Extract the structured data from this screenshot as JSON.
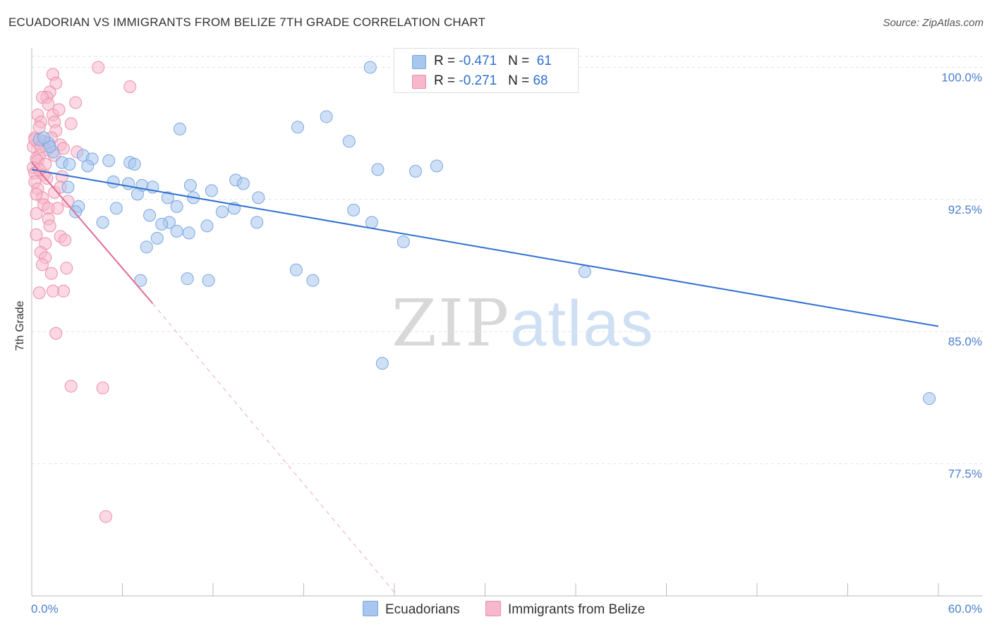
{
  "title": "ECUADORIAN VS IMMIGRANTS FROM BELIZE 7TH GRADE CORRELATION CHART",
  "source": "Source: ZipAtlas.com",
  "watermark": {
    "zip": "ZIP",
    "atlas": "atlas"
  },
  "legend": {
    "rows": [
      {
        "r_label": "R = ",
        "r_value": "-0.471",
        "n_label": "N = ",
        "n_value": "61",
        "color": "#a7c7ef"
      },
      {
        "r_label": "R = ",
        "r_value": "-0.271",
        "n_label": "N = ",
        "n_value": "68",
        "color": "#f7b8cc"
      }
    ]
  },
  "bottom_legend": [
    {
      "label": "Ecuadorians",
      "color": "#a7c7ef"
    },
    {
      "label": "Immigrants from Belize",
      "color": "#f7b8cc"
    }
  ],
  "chart_data": {
    "type": "scatter",
    "xlabel": "",
    "ylabel": "7th Grade",
    "xlim": [
      0,
      60
    ],
    "ylim": [
      70.0,
      100.7
    ],
    "x_tick_labels": [
      {
        "value": 0,
        "label": "0.0%"
      },
      {
        "value": 60,
        "label": "60.0%"
      }
    ],
    "y_tick_labels": [
      {
        "value": 100.0,
        "label": "100.0%"
      },
      {
        "value": 92.5,
        "label": "92.5%"
      },
      {
        "value": 85.0,
        "label": "85.0%"
      },
      {
        "value": 77.5,
        "label": "77.5%"
      }
    ],
    "grid": true,
    "series": [
      {
        "name": "Ecuadorians",
        "color": "#a7c7ef",
        "stroke": "#7aa6e0",
        "trend_color": "#2f6fd0",
        "trend": {
          "x0": 0.0,
          "y0": 94.2,
          "x1": 60.0,
          "y1": 85.3
        },
        "points": [
          [
            22.4,
            100.0
          ],
          [
            17.6,
            96.6
          ],
          [
            19.5,
            97.2
          ],
          [
            9.8,
            96.5
          ],
          [
            21.0,
            95.8
          ],
          [
            1.1,
            95.7
          ],
          [
            1.4,
            95.2
          ],
          [
            2.0,
            94.6
          ],
          [
            2.5,
            94.5
          ],
          [
            3.4,
            95.0
          ],
          [
            4.0,
            94.8
          ],
          [
            5.1,
            94.7
          ],
          [
            6.5,
            94.6
          ],
          [
            3.7,
            94.4
          ],
          [
            22.9,
            94.2
          ],
          [
            25.4,
            94.1
          ],
          [
            26.8,
            94.4
          ],
          [
            5.4,
            93.5
          ],
          [
            6.4,
            93.4
          ],
          [
            7.3,
            93.3
          ],
          [
            8.0,
            93.2
          ],
          [
            10.5,
            93.3
          ],
          [
            13.5,
            93.6
          ],
          [
            14.0,
            93.4
          ],
          [
            2.4,
            93.2
          ],
          [
            7.0,
            92.8
          ],
          [
            9.0,
            92.6
          ],
          [
            10.7,
            92.6
          ],
          [
            11.9,
            93.0
          ],
          [
            15.0,
            92.6
          ],
          [
            3.1,
            92.1
          ],
          [
            5.6,
            92.0
          ],
          [
            9.6,
            92.1
          ],
          [
            12.6,
            91.8
          ],
          [
            13.4,
            92.0
          ],
          [
            21.3,
            91.9
          ],
          [
            2.9,
            91.8
          ],
          [
            7.8,
            91.6
          ],
          [
            9.1,
            91.2
          ],
          [
            4.7,
            91.2
          ],
          [
            8.6,
            91.1
          ],
          [
            11.6,
            91.0
          ],
          [
            14.9,
            91.2
          ],
          [
            22.5,
            91.2
          ],
          [
            8.3,
            90.3
          ],
          [
            9.6,
            90.7
          ],
          [
            10.4,
            90.6
          ],
          [
            24.6,
            90.1
          ],
          [
            7.6,
            89.8
          ],
          [
            17.5,
            88.5
          ],
          [
            36.6,
            88.4
          ],
          [
            7.2,
            87.9
          ],
          [
            10.3,
            88.0
          ],
          [
            11.7,
            87.9
          ],
          [
            18.6,
            87.9
          ],
          [
            23.2,
            83.2
          ],
          [
            59.4,
            81.2
          ],
          [
            0.5,
            95.9
          ],
          [
            1.2,
            95.5
          ],
          [
            0.8,
            96.0
          ],
          [
            6.8,
            94.5
          ]
        ]
      },
      {
        "name": "Immigrants from Belize",
        "color": "#f7b8cc",
        "stroke": "#eb8fab",
        "trend_color": "#e26a94",
        "trend": {
          "x0": 0.0,
          "y0": 94.6,
          "x1": 8.0,
          "y1": 86.6
        },
        "trend_dashed": {
          "x0": 8.0,
          "y0": 86.6,
          "x1": 24.0,
          "y1": 70.2
        },
        "points": [
          [
            4.4,
            100.0
          ],
          [
            1.4,
            99.6
          ],
          [
            1.6,
            99.1
          ],
          [
            6.5,
            98.9
          ],
          [
            1.2,
            98.6
          ],
          [
            1.0,
            98.3
          ],
          [
            0.7,
            98.3
          ],
          [
            2.9,
            98.0
          ],
          [
            1.1,
            97.9
          ],
          [
            0.4,
            97.3
          ],
          [
            1.4,
            97.3
          ],
          [
            1.5,
            96.9
          ],
          [
            0.6,
            96.9
          ],
          [
            0.5,
            96.6
          ],
          [
            1.6,
            96.4
          ],
          [
            0.2,
            96.0
          ],
          [
            0.8,
            95.8
          ],
          [
            0.4,
            95.7
          ],
          [
            1.9,
            95.6
          ],
          [
            0.1,
            95.5
          ],
          [
            1.0,
            95.3
          ],
          [
            3.0,
            95.2
          ],
          [
            0.5,
            95.0
          ],
          [
            0.3,
            94.8
          ],
          [
            0.4,
            94.7
          ],
          [
            0.1,
            94.3
          ],
          [
            0.2,
            94.0
          ],
          [
            0.8,
            93.9
          ],
          [
            2.0,
            93.8
          ],
          [
            0.2,
            93.5
          ],
          [
            0.4,
            93.1
          ],
          [
            1.5,
            92.9
          ],
          [
            0.7,
            92.6
          ],
          [
            0.8,
            92.2
          ],
          [
            1.1,
            92.0
          ],
          [
            1.7,
            92.0
          ],
          [
            0.3,
            91.7
          ],
          [
            1.1,
            91.4
          ],
          [
            0.3,
            90.5
          ],
          [
            1.9,
            90.4
          ],
          [
            2.2,
            90.2
          ],
          [
            0.9,
            90.0
          ],
          [
            0.6,
            89.5
          ],
          [
            0.9,
            89.2
          ],
          [
            2.3,
            88.6
          ],
          [
            1.3,
            88.3
          ],
          [
            2.1,
            87.3
          ],
          [
            1.4,
            87.3
          ],
          [
            0.5,
            87.2
          ],
          [
            1.6,
            84.9
          ],
          [
            2.6,
            81.9
          ],
          [
            4.7,
            81.8
          ],
          [
            4.9,
            74.5
          ],
          [
            0.2,
            95.9
          ],
          [
            0.6,
            95.5
          ],
          [
            1.3,
            96.0
          ],
          [
            1.8,
            97.6
          ],
          [
            2.6,
            96.8
          ],
          [
            0.9,
            94.5
          ],
          [
            0.3,
            92.8
          ],
          [
            1.2,
            91.0
          ],
          [
            1.9,
            93.2
          ],
          [
            0.7,
            88.8
          ],
          [
            2.4,
            92.4
          ],
          [
            1.5,
            95.0
          ],
          [
            0.5,
            94.2
          ],
          [
            1.0,
            93.7
          ],
          [
            2.1,
            95.4
          ]
        ]
      }
    ]
  }
}
